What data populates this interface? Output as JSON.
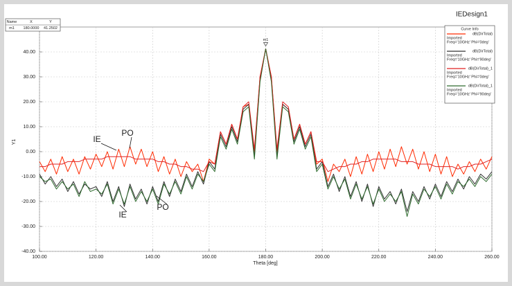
{
  "chart_data": {
    "type": "line",
    "title": "IEDesign1",
    "x_label": "Theta [deg]",
    "y_label": "Y1",
    "legend_title": "Curve Info",
    "grid": true,
    "legend": "upper right",
    "xlim": [
      100,
      260
    ],
    "ylim": [
      -40,
      50
    ],
    "xticks": [
      {
        "value": 100,
        "label": "100.00"
      },
      {
        "value": 120,
        "label": "120.00"
      },
      {
        "value": 140,
        "label": "140.00"
      },
      {
        "value": 160,
        "label": "160.00"
      },
      {
        "value": 180,
        "label": "180.00"
      },
      {
        "value": 200,
        "label": "200.00"
      },
      {
        "value": 220,
        "label": "220.00"
      },
      {
        "value": 240,
        "label": "240.00"
      },
      {
        "value": 260,
        "label": "260.00"
      }
    ],
    "yticks": [
      {
        "value": -40,
        "label": "-40.00"
      },
      {
        "value": -30,
        "label": "-30.00"
      },
      {
        "value": -20,
        "label": "-20.00"
      },
      {
        "value": -10,
        "label": "-10.00"
      },
      {
        "value": 0,
        "label": "0.00"
      },
      {
        "value": 10,
        "label": "10.00"
      },
      {
        "value": 20,
        "label": "20.00"
      },
      {
        "value": 30,
        "label": "30.00"
      },
      {
        "value": 40,
        "label": "40.00"
      }
    ],
    "marker_table_header": [
      "Name",
      "X",
      "Y"
    ],
    "marker": {
      "name": "m1",
      "x": 180,
      "y": 41.2502,
      "x_label": "180.0000",
      "y_label": "41.2502"
    },
    "annotations": [
      "IE",
      "PO",
      "IE",
      "PO"
    ],
    "x": [
      100,
      102,
      104,
      106,
      108,
      110,
      112,
      114,
      116,
      118,
      120,
      122,
      124,
      126,
      128,
      130,
      132,
      134,
      136,
      138,
      140,
      142,
      144,
      146,
      148,
      150,
      152,
      154,
      156,
      158,
      160,
      162,
      164,
      166,
      168,
      170,
      172,
      174,
      176,
      178,
      180,
      182,
      184,
      186,
      188,
      190,
      192,
      194,
      196,
      198,
      200,
      202,
      204,
      206,
      208,
      210,
      212,
      214,
      216,
      218,
      220,
      222,
      224,
      226,
      228,
      230,
      232,
      234,
      236,
      238,
      240,
      242,
      244,
      246,
      248,
      250,
      252,
      254,
      256,
      258,
      260
    ],
    "series": [
      {
        "name": "dB(DirTotal)",
        "legend_lines": [
          "Imported",
          "Freq='10GHz' Phi='0deg'"
        ],
        "color": "#ff2a00",
        "values": [
          -4,
          -8,
          -3,
          -9,
          -2,
          -8,
          -3,
          -9,
          -2,
          -7,
          -1,
          -6,
          0,
          -7,
          1,
          -6,
          2,
          -5,
          1,
          -6,
          0,
          -8,
          -2,
          -9,
          -3,
          -10,
          -4,
          -8,
          -5,
          -12,
          -3,
          -5,
          8,
          3,
          11,
          5,
          18,
          19,
          0,
          30,
          41.25,
          30,
          0,
          19,
          17,
          5,
          11,
          3,
          8,
          -5,
          -3,
          -12,
          -5,
          -8,
          -3,
          -10,
          -2,
          -9,
          -1,
          -8,
          0,
          -7,
          1,
          -6,
          2,
          -5,
          1,
          -7,
          0,
          -8,
          -1,
          -9,
          -2,
          -10,
          -5,
          -9,
          -4,
          -8,
          -3,
          -7,
          -2
        ]
      },
      {
        "name": "dB(DirTotal)",
        "legend_lines": [
          "Imported",
          "Freq='10GHz' Phi='90deg'"
        ],
        "color": "#333333",
        "values": [
          -9,
          -13,
          -10,
          -14,
          -11,
          -16,
          -12,
          -17,
          -13,
          -15,
          -14,
          -18,
          -12,
          -20,
          -14,
          -22,
          -13,
          -19,
          -15,
          -21,
          -14,
          -20,
          -12,
          -18,
          -11,
          -16,
          -9,
          -14,
          -8,
          -13,
          -4,
          -7,
          7,
          2,
          10,
          4,
          17,
          19,
          -2,
          29,
          41.25,
          29,
          -2,
          19,
          17,
          4,
          10,
          2,
          7,
          -7,
          -4,
          -14,
          -9,
          -16,
          -10,
          -18,
          -12,
          -20,
          -13,
          -22,
          -14,
          -19,
          -16,
          -21,
          -15,
          -24,
          -16,
          -20,
          -14,
          -19,
          -13,
          -18,
          -12,
          -16,
          -11,
          -15,
          -10,
          -13,
          -9,
          -11,
          -8
        ]
      },
      {
        "name": "dB(DirTotal)_1",
        "legend_lines": [
          "Imported",
          "Freq='10GHz' Phi='0deg'"
        ],
        "color": "#e02020",
        "values": [
          -6,
          -6,
          -5,
          -5,
          -5,
          -4,
          -4,
          -4,
          -3,
          -3,
          -3,
          -3,
          -2,
          -2,
          -2,
          -2,
          -2,
          -3,
          -3,
          -3,
          -3,
          -4,
          -4,
          -5,
          -5,
          -6,
          -6,
          -7,
          -7,
          -8,
          -4,
          -5,
          8,
          3,
          11,
          5,
          18,
          20,
          1,
          30,
          41.25,
          30,
          1,
          20,
          18,
          5,
          11,
          3,
          8,
          -4,
          -4,
          -8,
          -7,
          -6,
          -6,
          -5,
          -5,
          -4,
          -4,
          -3,
          -3,
          -3,
          -3,
          -3,
          -4,
          -4,
          -4,
          -5,
          -5,
          -5,
          -6,
          -6,
          -6,
          -6,
          -7,
          -6,
          -6,
          -5,
          -5,
          -4,
          -3
        ]
      },
      {
        "name": "dB(DirTotal)_1",
        "legend_lines": [
          "Imported",
          "Freq='10GHz' Phi='90deg'"
        ],
        "color": "#2e6b2e",
        "values": [
          -10,
          -12,
          -11,
          -15,
          -12,
          -15,
          -13,
          -18,
          -12,
          -16,
          -15,
          -17,
          -13,
          -21,
          -15,
          -21,
          -14,
          -20,
          -16,
          -20,
          -15,
          -21,
          -13,
          -17,
          -12,
          -17,
          -10,
          -15,
          -9,
          -12,
          -5,
          -8,
          6,
          1,
          9,
          3,
          16,
          18,
          -3,
          28,
          41.25,
          28,
          -3,
          18,
          16,
          3,
          9,
          1,
          6,
          -8,
          -5,
          -15,
          -10,
          -15,
          -11,
          -19,
          -13,
          -19,
          -14,
          -21,
          -15,
          -20,
          -17,
          -20,
          -16,
          -26,
          -17,
          -21,
          -15,
          -18,
          -14,
          -19,
          -13,
          -17,
          -12,
          -14,
          -11,
          -14,
          -10,
          -12,
          -9
        ]
      }
    ]
  }
}
